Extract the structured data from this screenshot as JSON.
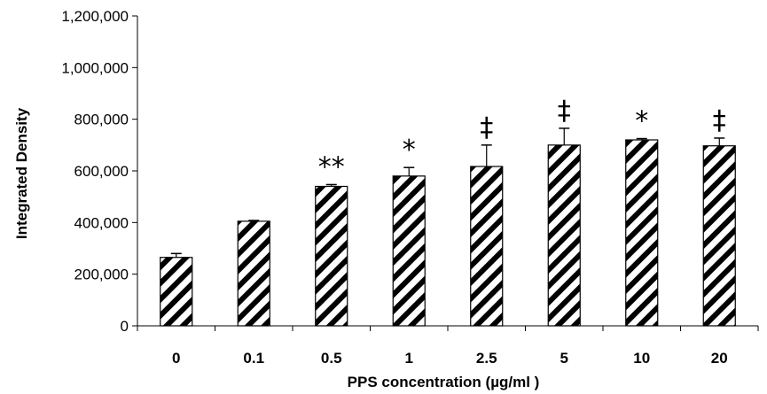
{
  "chart_data": {
    "type": "bar",
    "categories": [
      "0",
      "0.1",
      "0.5",
      "1",
      "2.5",
      "5",
      "10",
      "20"
    ],
    "values": [
      265000,
      405000,
      540000,
      580000,
      617000,
      700000,
      720000,
      697000
    ],
    "errors": [
      15000,
      3000,
      7000,
      33000,
      83000,
      65000,
      5000,
      30000
    ],
    "annotations": [
      "",
      "",
      "**",
      "*",
      "‡",
      "‡",
      "*",
      "‡"
    ],
    "xlabel": "PPS concentration (µg/ml )",
    "ylabel": "Integrated Density",
    "ylim": [
      0,
      1200000
    ],
    "yticks": [
      0,
      200000,
      400000,
      600000,
      800000,
      1000000,
      1200000
    ],
    "ytick_labels": [
      "0",
      "200,000",
      "400,000",
      "600,000",
      "800,000",
      "1,000,000",
      "1,200,000"
    ],
    "bar_fill": "diagonal-hatch",
    "colors": {
      "bar_outline": "#000000",
      "hatch": "#000000",
      "background": "#ffffff"
    },
    "grid": false,
    "legend": "none"
  }
}
